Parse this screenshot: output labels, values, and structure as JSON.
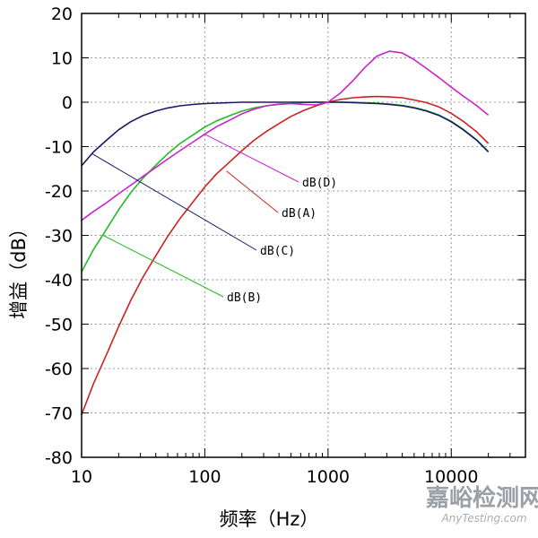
{
  "chart_data": {
    "type": "line",
    "title": "",
    "xlabel": "频率（Hz）",
    "ylabel": "增益（dB）",
    "xscale": "log",
    "xlim": [
      10,
      40000
    ],
    "ylim": [
      -80,
      20
    ],
    "grid": true,
    "xticks": [
      10,
      100,
      1000,
      10000
    ],
    "xtick_labels": [
      "10",
      "100",
      "1000",
      "10000"
    ],
    "yticks": [
      20,
      10,
      0,
      -10,
      -20,
      -30,
      -40,
      -50,
      -60,
      -70,
      -80
    ],
    "ytick_labels": [
      "20",
      "10",
      "0",
      "-10",
      "-20",
      "-30",
      "-40",
      "-50",
      "-60",
      "-70",
      "-80"
    ],
    "series": [
      {
        "name": "dB(A)",
        "color": "#cc2222",
        "x": [
          10,
          12.5,
          16,
          20,
          25,
          31.5,
          40,
          50,
          63,
          80,
          100,
          125,
          160,
          200,
          250,
          315,
          400,
          500,
          630,
          800,
          1000,
          1250,
          1600,
          2000,
          2500,
          3150,
          4000,
          5000,
          6300,
          8000,
          10000,
          12500,
          16000,
          20000
        ],
        "y": [
          -70.4,
          -63.4,
          -56.7,
          -50.5,
          -44.7,
          -39.4,
          -34.6,
          -30.2,
          -26.2,
          -22.5,
          -19.1,
          -16.1,
          -13.4,
          -10.9,
          -8.6,
          -6.6,
          -4.8,
          -3.2,
          -1.9,
          -0.8,
          0,
          0.6,
          1.0,
          1.2,
          1.3,
          1.2,
          1.0,
          0.5,
          -0.1,
          -1.1,
          -2.5,
          -4.3,
          -6.6,
          -9.3
        ]
      },
      {
        "name": "dB(B)",
        "color": "#22bb22",
        "x": [
          10,
          12.5,
          16,
          20,
          25,
          31.5,
          40,
          50,
          63,
          80,
          100,
          125,
          160,
          200,
          250,
          315,
          400,
          500,
          630,
          800,
          1000,
          1250,
          1600,
          2000,
          2500,
          3150,
          4000,
          5000,
          6300,
          8000,
          10000,
          12500,
          16000,
          20000
        ],
        "y": [
          -38.2,
          -33.2,
          -28.5,
          -24.2,
          -20.4,
          -17.1,
          -14.2,
          -11.6,
          -9.3,
          -7.4,
          -5.6,
          -4.2,
          -3.0,
          -2.0,
          -1.3,
          -0.8,
          -0.5,
          -0.3,
          -0.1,
          0,
          0,
          0,
          0,
          -0.1,
          -0.2,
          -0.4,
          -0.7,
          -1.2,
          -1.9,
          -2.9,
          -4.3,
          -6.1,
          -8.4,
          -11.1
        ]
      },
      {
        "name": "dB(C)",
        "color": "#1a1a66",
        "x": [
          10,
          12.5,
          16,
          20,
          25,
          31.5,
          40,
          50,
          63,
          80,
          100,
          125,
          160,
          200,
          250,
          315,
          400,
          500,
          630,
          800,
          1000,
          1250,
          1600,
          2000,
          2500,
          3150,
          4000,
          5000,
          6300,
          8000,
          10000,
          12500,
          16000,
          20000
        ],
        "y": [
          -14.3,
          -11.2,
          -8.5,
          -6.2,
          -4.4,
          -3.0,
          -2.0,
          -1.3,
          -0.8,
          -0.5,
          -0.3,
          -0.2,
          -0.1,
          0,
          0,
          0,
          0,
          0,
          0,
          0,
          0,
          0,
          -0.1,
          -0.2,
          -0.3,
          -0.5,
          -0.8,
          -1.3,
          -2.0,
          -3.0,
          -4.4,
          -6.2,
          -8.5,
          -11.2
        ]
      },
      {
        "name": "dB(D)",
        "color": "#cc22cc",
        "x": [
          10,
          12.5,
          16,
          20,
          25,
          31.5,
          40,
          50,
          63,
          80,
          100,
          125,
          160,
          200,
          250,
          315,
          400,
          500,
          630,
          800,
          1000,
          1250,
          1600,
          2000,
          2500,
          3150,
          4000,
          5000,
          6300,
          8000,
          10000,
          12500,
          16000,
          20000
        ],
        "y": [
          -26.6,
          -24.6,
          -22.6,
          -20.6,
          -18.7,
          -16.7,
          -14.7,
          -12.8,
          -10.9,
          -9.0,
          -7.2,
          -5.5,
          -4.0,
          -2.6,
          -1.6,
          -0.8,
          -0.4,
          -0.3,
          -0.5,
          -0.6,
          0,
          2.0,
          4.9,
          7.9,
          10.4,
          11.5,
          11.1,
          9.6,
          7.6,
          5.5,
          3.4,
          1.4,
          -0.7,
          -2.9
        ]
      }
    ],
    "annotations": [
      {
        "text": "dB(D)",
        "series": "dB(D)",
        "point": [
          100,
          -7.2
        ]
      },
      {
        "text": "dB(A)",
        "series": "dB(A)",
        "point": [
          150,
          -15.5
        ]
      },
      {
        "text": "dB(C)",
        "series": "dB(C)",
        "point": [
          12,
          -11.5
        ]
      },
      {
        "text": "dB(B)",
        "series": "dB(B)",
        "point": [
          15,
          -30
        ]
      }
    ]
  },
  "watermark": {
    "text": "嘉峪检测网",
    "subtext": "AnyTesting.com"
  }
}
